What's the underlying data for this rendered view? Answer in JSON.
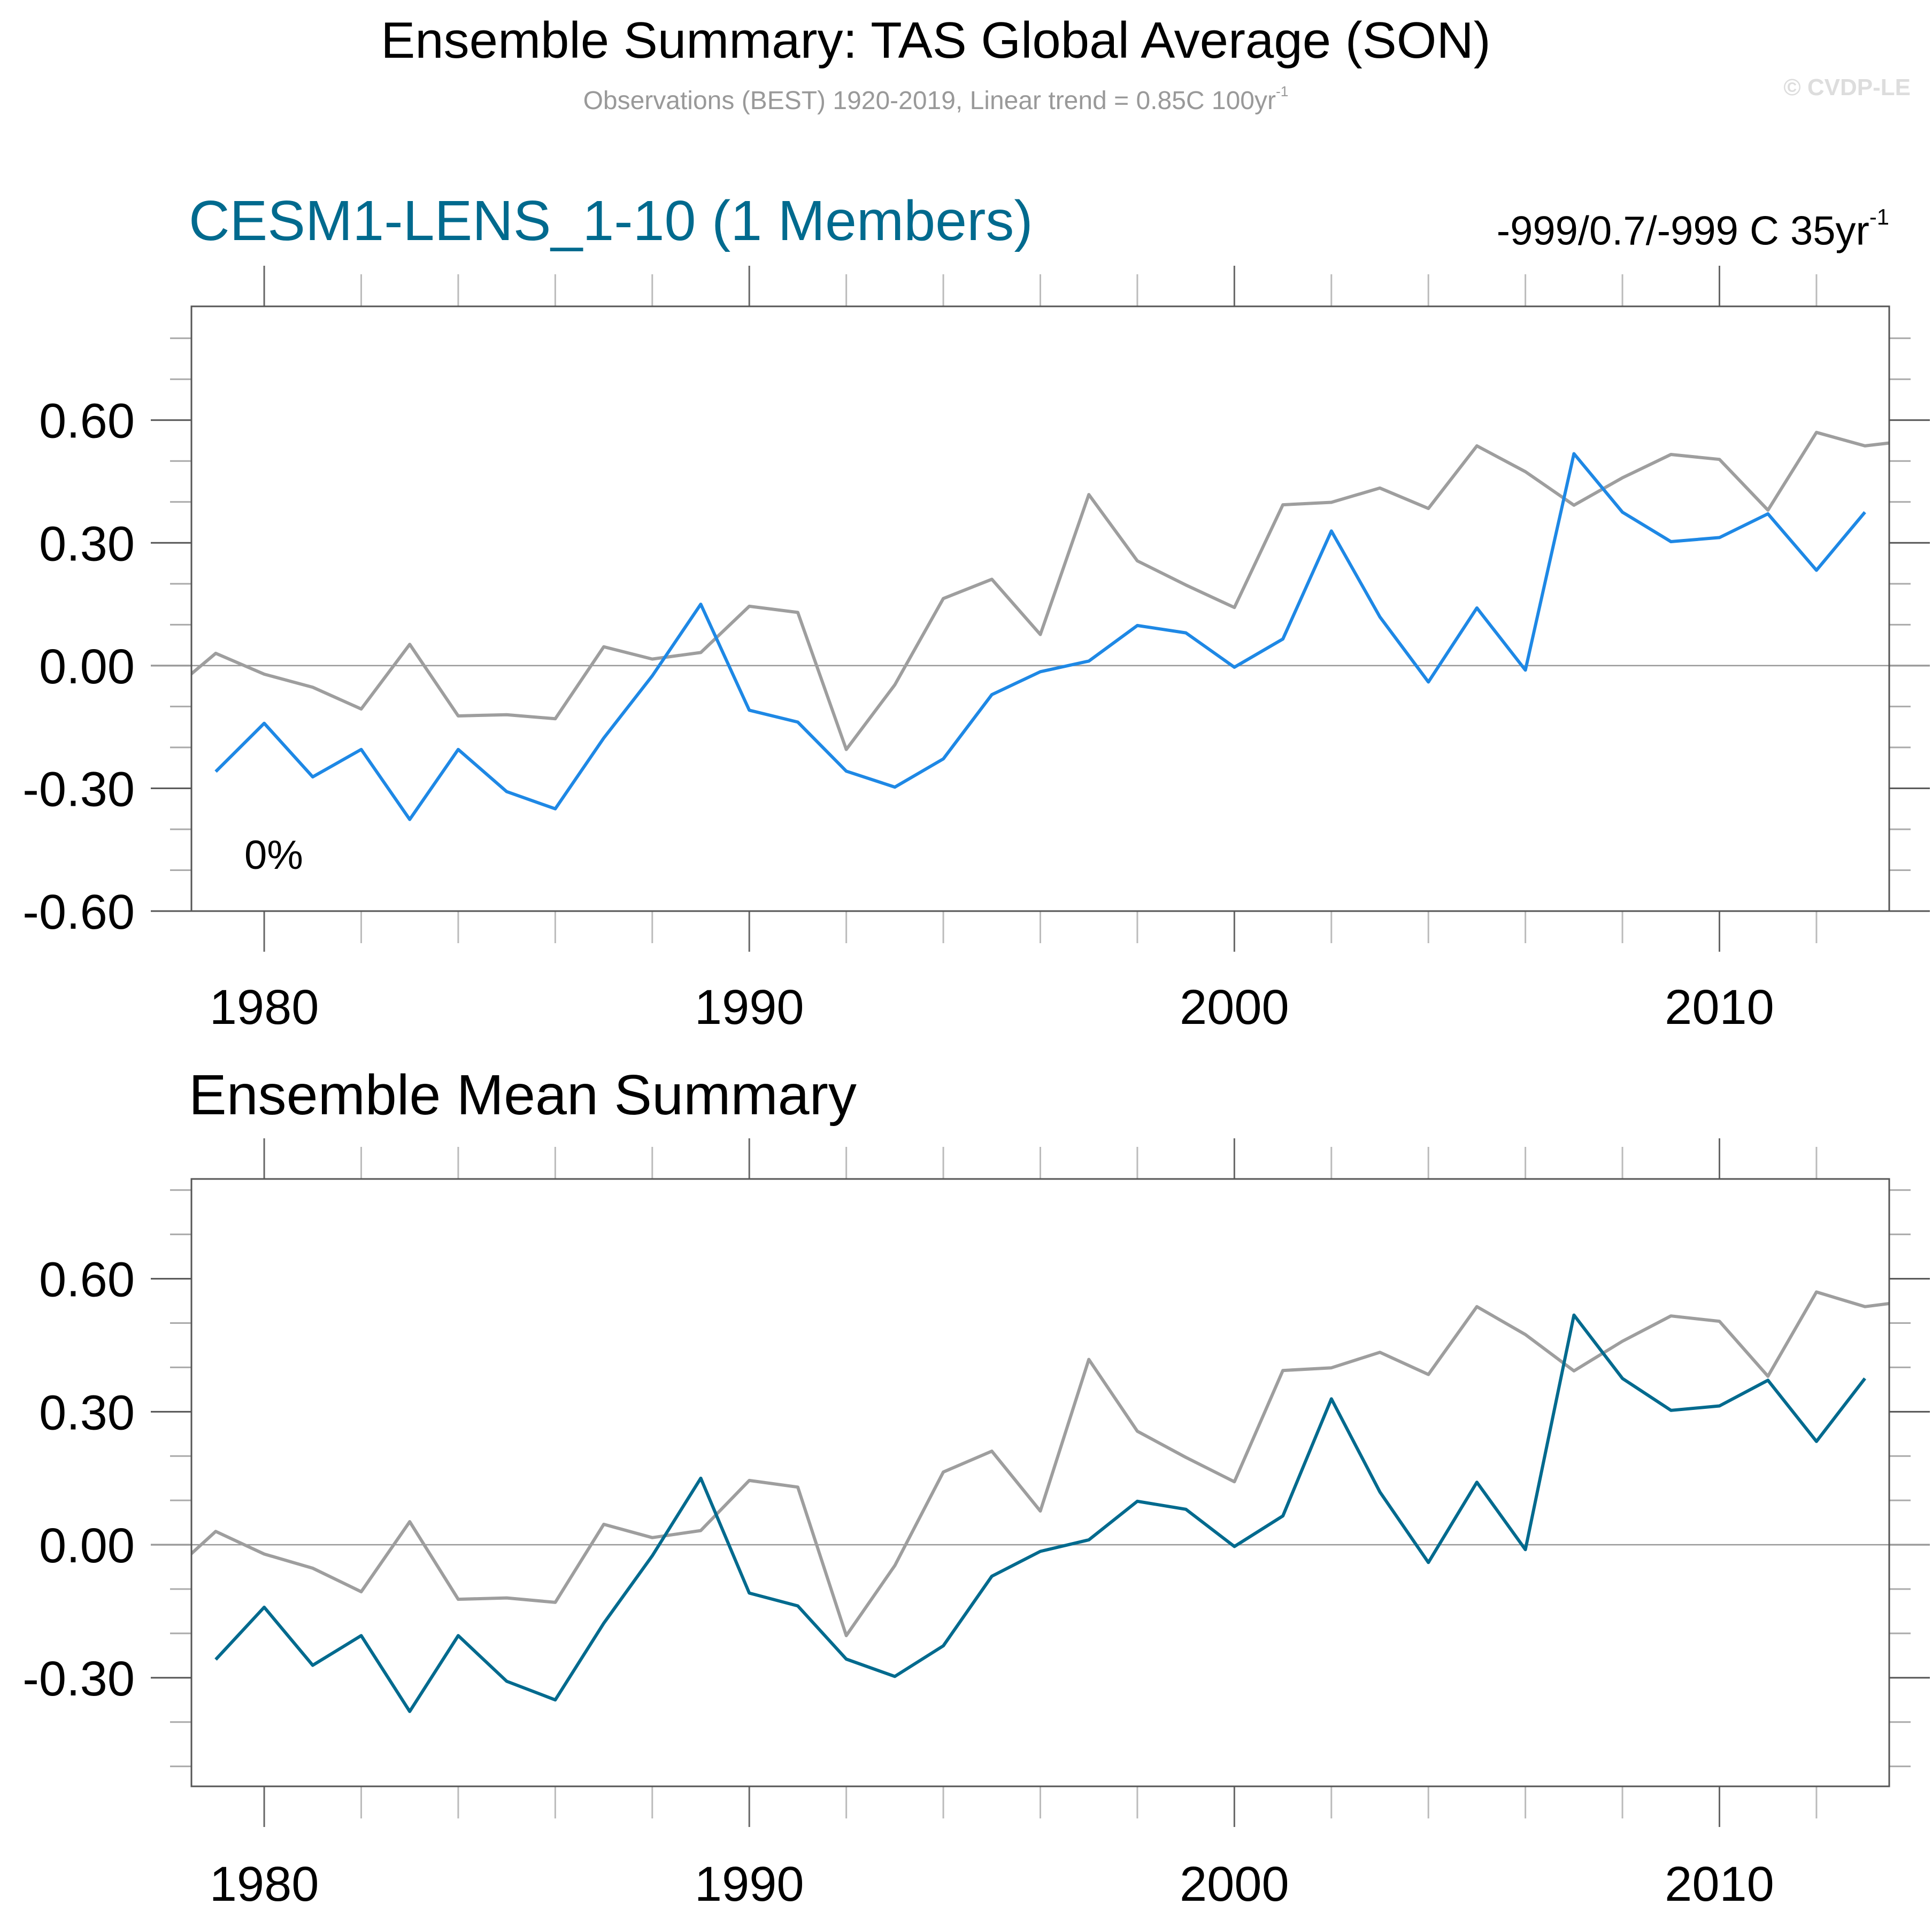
{
  "header": {
    "title": "Ensemble Summary: TAS Global Average (SON)",
    "subtitle": "Observations (BEST) 1920-2019, Linear trend = 0.85C 100yr",
    "subtitle_sup": "-1",
    "watermark": "© CVDP-LE"
  },
  "colors": {
    "observations": "#9e9e9e",
    "member": "#1e88e5",
    "ensemble_mean": "#006a8e",
    "panel_title": "#006a8e",
    "axis": "#666666",
    "zero_line": "#999999"
  },
  "chart_data": [
    {
      "type": "line",
      "title": "CESM1-LENS_1-10 (1 Members)",
      "trend_label": "-999/0.7/-999 C 35yr",
      "trend_label_sup": "-1",
      "annotation": "0%",
      "xlabel": "",
      "ylabel": "",
      "xlim": [
        1978.5,
        2013.5
      ],
      "ylim": [
        -0.6,
        0.878
      ],
      "yticks": [
        -0.6,
        -0.3,
        0.0,
        0.3,
        0.6
      ],
      "ytick_labels": [
        "-0.60",
        "-0.30",
        "0.00",
        "0.30",
        "0.60"
      ],
      "yminor_step": 0.1,
      "xticks": [
        1980,
        1990,
        2000,
        2010
      ],
      "xtick_labels": [
        "1980",
        "1990",
        "2000",
        "2010"
      ],
      "xminor_step": 2,
      "zero_line": true,
      "grid": false,
      "series": [
        {
          "name": "Observations (BEST)",
          "color_key": "observations",
          "x": [
            1978,
            1979,
            1980,
            1981,
            1982,
            1983,
            1984,
            1985,
            1986,
            1987,
            1988,
            1989,
            1990,
            1991,
            1992,
            1993,
            1994,
            1995,
            1996,
            1997,
            1998,
            1999,
            2000,
            2001,
            2002,
            2003,
            2004,
            2005,
            2006,
            2007,
            2008,
            2009,
            2010,
            2011,
            2012,
            2013,
            2014
          ],
          "values": [
            -0.07,
            0.03,
            -0.021,
            -0.053,
            -0.106,
            0.052,
            -0.123,
            -0.12,
            -0.13,
            0.046,
            0.016,
            0.032,
            0.145,
            0.13,
            -0.205,
            -0.047,
            0.164,
            0.211,
            0.076,
            0.418,
            0.256,
            0.197,
            0.142,
            0.393,
            0.399,
            0.434,
            0.384,
            0.537,
            0.474,
            0.392,
            0.459,
            0.516,
            0.504,
            0.38,
            0.57,
            0.537,
            0.551
          ]
        },
        {
          "name": "CESM1-LENS member",
          "color_key": "member",
          "x": [
            1979,
            1980,
            1981,
            1982,
            1983,
            1984,
            1985,
            1986,
            1987,
            1988,
            1989,
            1990,
            1991,
            1992,
            1993,
            1994,
            1995,
            1996,
            1997,
            1998,
            1999,
            2000,
            2001,
            2002,
            2003,
            2004,
            2005,
            2006,
            2007,
            2008,
            2009,
            2010,
            2011,
            2012,
            2013
          ],
          "values": [
            -0.259,
            -0.141,
            -0.272,
            -0.205,
            -0.376,
            -0.205,
            -0.308,
            -0.35,
            -0.177,
            -0.025,
            0.15,
            -0.109,
            -0.138,
            -0.258,
            -0.297,
            -0.228,
            -0.071,
            -0.015,
            0.011,
            0.098,
            0.08,
            -0.004,
            0.065,
            0.329,
            0.119,
            -0.04,
            0.141,
            -0.011,
            0.518,
            0.375,
            0.303,
            0.313,
            0.371,
            0.233,
            0.375
          ]
        }
      ]
    },
    {
      "type": "line",
      "title": "Ensemble Mean Summary",
      "xlabel": "",
      "ylabel": "",
      "xlim": [
        1978.5,
        2013.5
      ],
      "ylim": [
        -0.545,
        0.825
      ],
      "yticks": [
        -0.3,
        0.0,
        0.3,
        0.6
      ],
      "ytick_labels": [
        "-0.30",
        "0.00",
        "0.30",
        "0.60"
      ],
      "yminor_step": 0.1,
      "xticks": [
        1980,
        1990,
        2000,
        2010
      ],
      "xtick_labels": [
        "1980",
        "1990",
        "2000",
        "2010"
      ],
      "xminor_step": 2,
      "zero_line": true,
      "grid": false,
      "series": [
        {
          "name": "Observations (BEST)",
          "color_key": "observations",
          "x": [
            1978,
            1979,
            1980,
            1981,
            1982,
            1983,
            1984,
            1985,
            1986,
            1987,
            1988,
            1989,
            1990,
            1991,
            1992,
            1993,
            1994,
            1995,
            1996,
            1997,
            1998,
            1999,
            2000,
            2001,
            2002,
            2003,
            2004,
            2005,
            2006,
            2007,
            2008,
            2009,
            2010,
            2011,
            2012,
            2013,
            2014
          ],
          "values": [
            -0.07,
            0.03,
            -0.021,
            -0.053,
            -0.106,
            0.052,
            -0.123,
            -0.12,
            -0.13,
            0.046,
            0.016,
            0.032,
            0.145,
            0.13,
            -0.205,
            -0.047,
            0.164,
            0.211,
            0.076,
            0.418,
            0.256,
            0.197,
            0.142,
            0.393,
            0.399,
            0.434,
            0.384,
            0.537,
            0.474,
            0.392,
            0.459,
            0.516,
            0.504,
            0.38,
            0.57,
            0.537,
            0.551
          ]
        },
        {
          "name": "Ensemble mean",
          "color_key": "ensemble_mean",
          "x": [
            1979,
            1980,
            1981,
            1982,
            1983,
            1984,
            1985,
            1986,
            1987,
            1988,
            1989,
            1990,
            1991,
            1992,
            1993,
            1994,
            1995,
            1996,
            1997,
            1998,
            1999,
            2000,
            2001,
            2002,
            2003,
            2004,
            2005,
            2006,
            2007,
            2008,
            2009,
            2010,
            2011,
            2012,
            2013
          ],
          "values": [
            -0.259,
            -0.141,
            -0.272,
            -0.205,
            -0.376,
            -0.205,
            -0.308,
            -0.35,
            -0.177,
            -0.025,
            0.15,
            -0.109,
            -0.138,
            -0.258,
            -0.297,
            -0.228,
            -0.071,
            -0.015,
            0.011,
            0.098,
            0.08,
            -0.004,
            0.065,
            0.329,
            0.119,
            -0.04,
            0.141,
            -0.011,
            0.518,
            0.375,
            0.303,
            0.313,
            0.371,
            0.233,
            0.375
          ]
        }
      ]
    }
  ]
}
